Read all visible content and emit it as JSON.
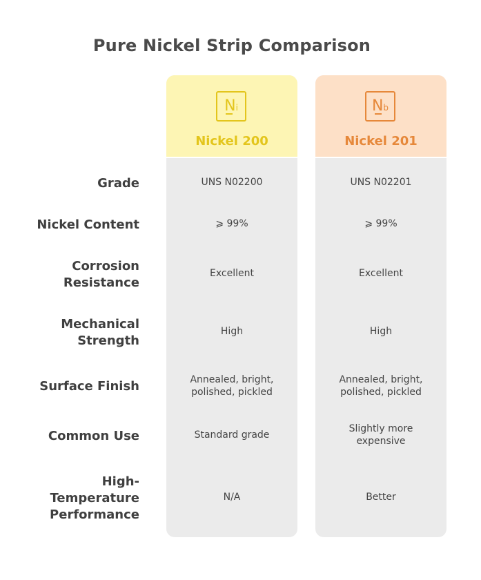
{
  "title": "Pure Nickel Strip Comparison",
  "columns": [
    {
      "name": "Nickel 200",
      "icon": {
        "name": "element-ni-icon",
        "symbol": "N",
        "sub": "i"
      },
      "header_bg": "#fdf5b4",
      "accent": "#e3c51c",
      "values": [
        "UNS N02200",
        "⩾ 99%",
        "Excellent",
        "High",
        "Annealed, bright, polished, pickled",
        "Standard grade",
        "N/A"
      ]
    },
    {
      "name": "Nickel 201",
      "icon": {
        "name": "element-nb-icon",
        "symbol": "N",
        "sub": "b"
      },
      "header_bg": "#fde0c7",
      "accent": "#e6883a",
      "values": [
        "UNS N02201",
        "⩾ 99%",
        "Excellent",
        "High",
        "Annealed, bright, polished, pickled",
        "Slightly more expensive",
        "Better"
      ]
    }
  ],
  "rows": [
    "Grade",
    "Nickel Content",
    "Corrosion Resistance",
    "Mechanical Strength",
    "Surface Finish",
    "Common Use",
    "High-Temperature Performance"
  ],
  "colors": {
    "cell_bg": "#ebebeb",
    "label_text": "#3f3f3f",
    "title_text": "#4a4a4a"
  }
}
